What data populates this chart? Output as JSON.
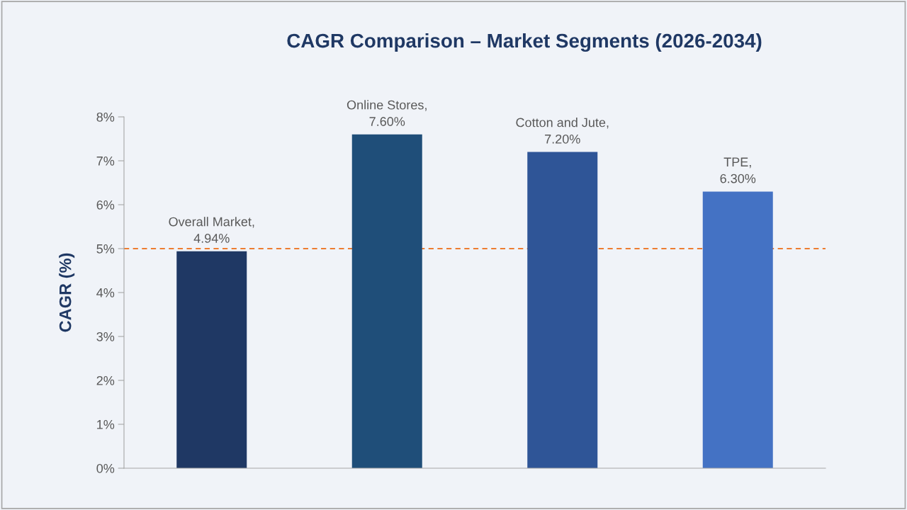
{
  "chart_data": {
    "type": "bar",
    "title": "CAGR Comparison – Market Segments (2026-2034)",
    "ylabel": "CAGR (%)",
    "categories": [
      null,
      null,
      null,
      null
    ],
    "values": [
      4.94,
      7.6,
      7.2,
      6.3
    ],
    "colors": [
      "#1f3864",
      "#1f4e79",
      "#2f5597",
      "#4472c4"
    ],
    "value_labels": [
      "Overall Market,\n4.94%",
      "Online Stores,\n7.60%",
      "Cotton and Jute,\n7.20%",
      "TPE,\n6.30%"
    ],
    "ylim": [
      0,
      8
    ],
    "yticks": [
      {
        "value": 0,
        "label": "0%"
      },
      {
        "value": 1,
        "label": "1%"
      },
      {
        "value": 2,
        "label": "2%"
      },
      {
        "value": 3,
        "label": "3%"
      },
      {
        "value": 4,
        "label": "4%"
      },
      {
        "value": 5,
        "label": "5%"
      },
      {
        "value": 6,
        "label": "6%"
      },
      {
        "value": 7,
        "label": "7%"
      },
      {
        "value": 8,
        "label": "8%"
      }
    ],
    "ref_lines": [
      {
        "axis": "y",
        "value": 5,
        "label": null,
        "color": "#ed7d31",
        "line_style": "dashed"
      }
    ],
    "grid": false,
    "legend": false
  }
}
